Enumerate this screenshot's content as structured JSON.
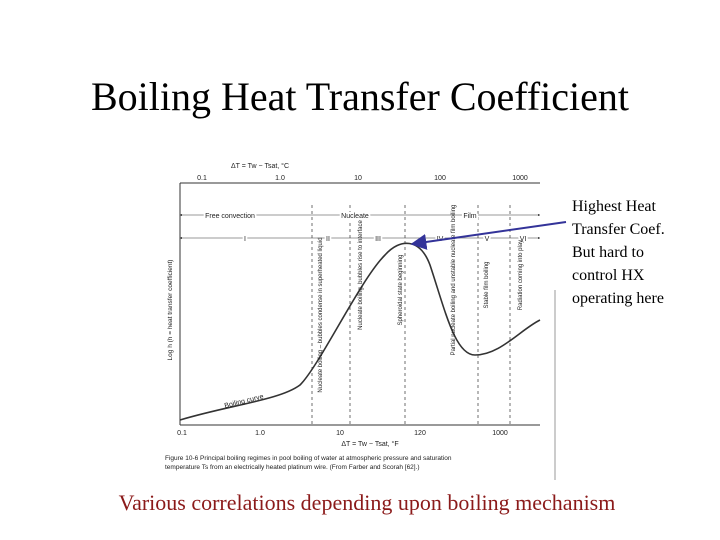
{
  "slide": {
    "title": "Boiling Heat Transfer Coefficient",
    "callout": [
      "Highest Heat",
      "Transfer Coef.",
      "But hard to",
      "control HX",
      "operating here"
    ],
    "footer": "Various correlations depending upon boiling mechanism",
    "figure": {
      "top_axis_label": "ΔT = Tw − Tsat, °C",
      "top_ticks": [
        "0.1",
        "1.0",
        "10",
        "100",
        "1000"
      ],
      "bottom_axis_label": "ΔT = Tw − Tsat, °F",
      "bottom_ticks": [
        "0.1",
        "1.0",
        "10",
        "120",
        "1000"
      ],
      "y_axis_label": "Log h (h = heat transfer coefficient)",
      "regimes": [
        "Free convection",
        "Nucleate",
        "Film"
      ],
      "zones": [
        "I",
        "II",
        "III",
        "IV",
        "V",
        "VI"
      ],
      "notes": [
        "Nucleate boiling – bubbles condense in superheated liquid",
        "Nucleate boiling, bubbles rise to interface",
        "Spheroidal state beginning",
        "Partial nucleate boiling and unstable nucleate film boiling",
        "Stable film boiling",
        "Radiation coming into play"
      ],
      "curve_label": "Boiling curve",
      "caption": [
        "Figure 10-6  Principal boiling regimes in pool boiling of water at atmospheric pressure and saturation",
        "temperature Ts from an electrically heated platinum wire. (From Farber and Scorah [62].)"
      ]
    }
  }
}
